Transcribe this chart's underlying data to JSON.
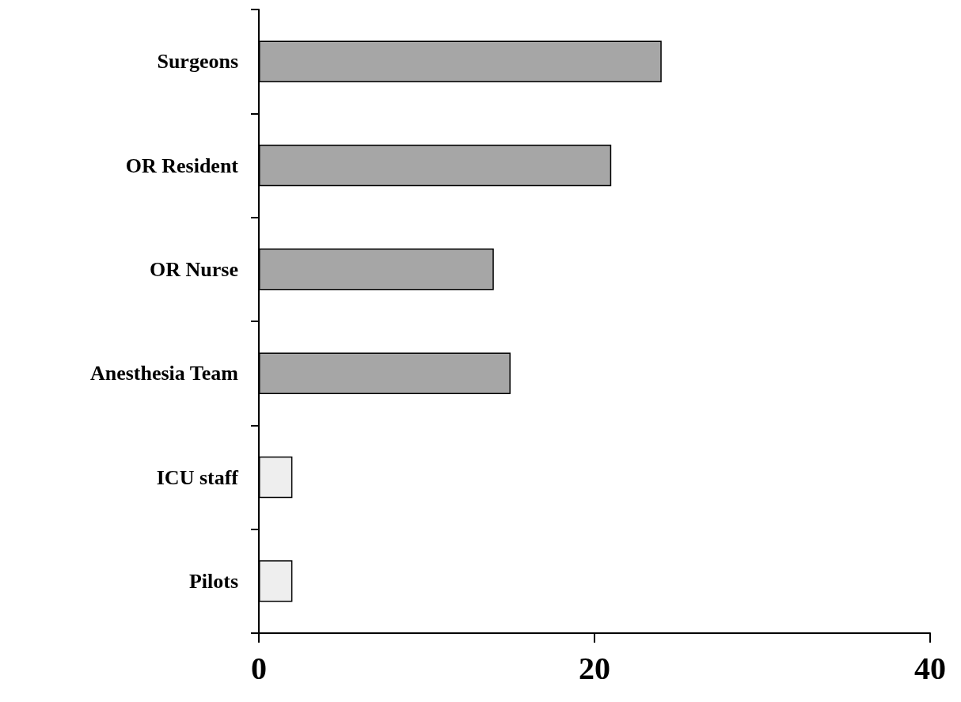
{
  "chart_data": {
    "type": "bar",
    "orientation": "horizontal",
    "categories": [
      "Surgeons",
      "OR Resident",
      "OR Nurse",
      "Anesthesia Team",
      "ICU staff",
      "Pilots"
    ],
    "values": [
      24,
      21,
      14,
      15,
      2,
      2
    ],
    "colors": [
      "#a6a6a6",
      "#a6a6a6",
      "#a6a6a6",
      "#a6a6a6",
      "#eeeeee",
      "#eeeeee"
    ],
    "xlim": [
      0,
      40
    ],
    "xticks": [
      0,
      20,
      40
    ],
    "grid": false
  }
}
